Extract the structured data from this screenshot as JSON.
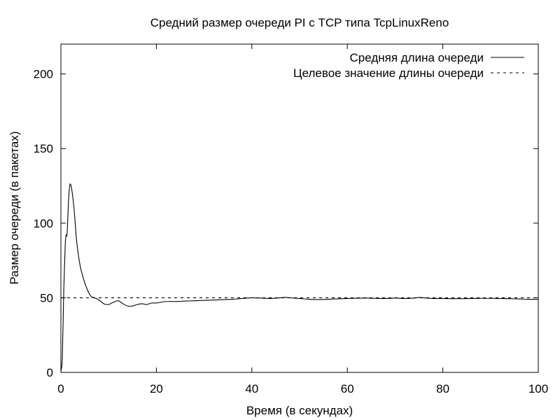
{
  "chart_data": {
    "type": "line",
    "title": "Средний размер очереди PI с TCP типа TcpLinuxReno",
    "xlabel": "Время (в секундах)",
    "ylabel": "Размер очереди (в пакетах)",
    "xlim": [
      0,
      100
    ],
    "ylim": [
      0,
      220
    ],
    "xticks": [
      0,
      20,
      40,
      60,
      80,
      100
    ],
    "yticks": [
      0,
      50,
      100,
      150,
      200
    ],
    "grid": false,
    "legend_position": "top-right",
    "series": [
      {
        "name": "Средняя длина очереди",
        "style": "solid",
        "color": "#000000",
        "x": [
          0,
          0.3,
          0.6,
          0.9,
          1.1,
          1.3,
          1.6,
          1.9,
          2.3,
          2.8,
          3.3,
          4,
          4.8,
          5.6,
          6.3,
          7,
          8,
          9,
          10,
          11,
          12,
          13,
          14,
          15,
          16,
          17,
          18,
          19,
          20,
          22,
          24,
          26,
          28,
          30,
          32,
          34,
          36,
          38,
          40,
          42,
          44,
          46,
          47,
          48,
          50,
          52,
          54,
          56,
          58,
          60,
          62,
          64,
          66,
          68,
          70,
          72,
          74,
          75,
          76,
          78,
          80,
          82,
          84,
          86,
          88,
          90,
          92,
          94,
          96,
          98,
          100
        ],
        "values": [
          1,
          10,
          55,
          85,
          92,
          93,
          115,
          126,
          122,
          108,
          88,
          72,
          62,
          55,
          51,
          50,
          48.5,
          46,
          45.5,
          47,
          48,
          46,
          44.5,
          44.5,
          45.5,
          46,
          45.5,
          46.5,
          46.5,
          47.5,
          47.5,
          47.8,
          48,
          48.3,
          48.5,
          48.8,
          49,
          49.5,
          50,
          49.8,
          49.5,
          50,
          50.3,
          50,
          49.5,
          49,
          48.8,
          49,
          49.3,
          49.5,
          49.7,
          49.8,
          49.6,
          49.5,
          49.8,
          49.5,
          49.8,
          50.2,
          50,
          49.5,
          49.5,
          49.4,
          49.4,
          49.5,
          49.6,
          49.6,
          49.5,
          49.4,
          49.2,
          49,
          49
        ]
      },
      {
        "name": "Целевое значение длины очереди",
        "style": "dashed",
        "color": "#000000",
        "x": [
          0,
          100
        ],
        "values": [
          50,
          50
        ]
      }
    ]
  }
}
